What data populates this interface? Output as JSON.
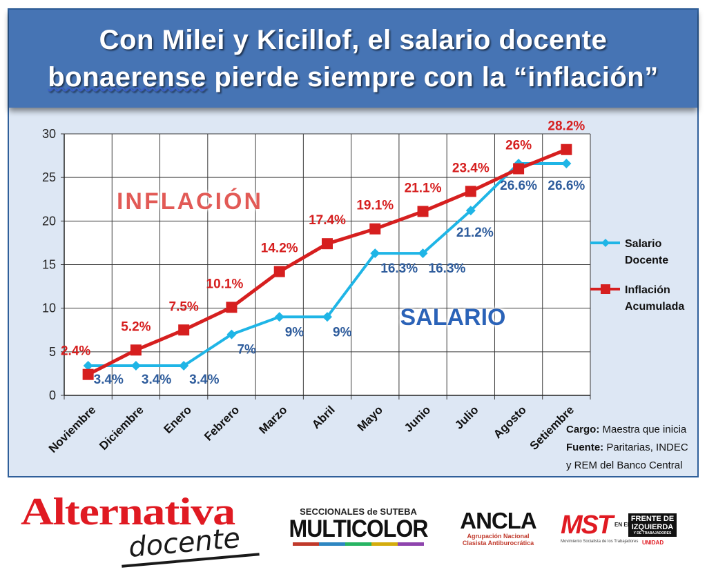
{
  "header": {
    "title_line1": "Con Milei y Kicillof, el salario docente",
    "title_line2_first": "bonaerense",
    "title_line2_rest": " pierde siempre con la “inflación”"
  },
  "chart_data": {
    "type": "line",
    "categories": [
      "Noviembre",
      "Diciembre",
      "Enero",
      "Febrero",
      "Marzo",
      "Abril",
      "Mayo",
      "Junio",
      "Julio",
      "Agosto",
      "Setiembre"
    ],
    "ylim": [
      0,
      30
    ],
    "yticks": [
      "0",
      "5",
      "10",
      "15",
      "20",
      "25",
      "30"
    ],
    "grid": true,
    "legend_position": "right",
    "series": [
      {
        "name": "Salario Docente",
        "legend_lines": [
          "Salario",
          "Docente"
        ],
        "color": "#1fb5e6",
        "marker": "diamond",
        "values": [
          3.4,
          3.4,
          3.4,
          7,
          9,
          9,
          16.3,
          16.3,
          21.2,
          26.6,
          26.6
        ],
        "labels": [
          "3.4%",
          "3.4%",
          "3.4%",
          "7%",
          "9%",
          "9%",
          "16.3%",
          "16.3%",
          "21.2%",
          "26.6%",
          "26.6%"
        ],
        "label_color": "#2e5c9c"
      },
      {
        "name": "Inflación Acumulada",
        "legend_lines": [
          "Inflación",
          "Acumulada"
        ],
        "color": "#d61f1f",
        "marker": "square",
        "values": [
          2.4,
          5.2,
          7.5,
          10.1,
          14.2,
          17.4,
          19.1,
          21.1,
          23.4,
          26,
          28.2
        ],
        "labels": [
          "2.4%",
          "5.2%",
          "7.5%",
          "10.1%",
          "14.2%",
          "17.4%",
          "19.1%",
          "21.1%",
          "23.4%",
          "26%",
          "28.2%"
        ],
        "label_color": "#d61f1f"
      }
    ],
    "annotations": {
      "inflacion": "INFLACIÓN",
      "salario": "SALARIO"
    }
  },
  "notes": {
    "cargo_label": "Cargo:",
    "cargo_text": " Maestra que inicia",
    "fuente_label": "Fuente:",
    "fuente_text": " Paritarias, INDEC",
    "fuente_text2": "y REM del Banco Central"
  },
  "logos": {
    "alternativa": "Alternativa",
    "docente": "docente",
    "multicolor_top": "SECCIONALES de SUTEBA",
    "multicolor_main": "MULTICOLOR",
    "ancla_main": "ANCLA",
    "ancla_sub1": "Agrupación Nacional",
    "ancla_sub2": "Clasista Antiburocrática",
    "mst_main": "MST",
    "mst_en": "EN EL",
    "mst_fit1": "FRENTE DE",
    "mst_fit2": "IZQUIERDA",
    "mst_fit3": "Y DE TRABAJADORES",
    "mst_unidad": "UNIDAD",
    "mst_desc": "Movimiento Socialista de los Trabajadores"
  }
}
